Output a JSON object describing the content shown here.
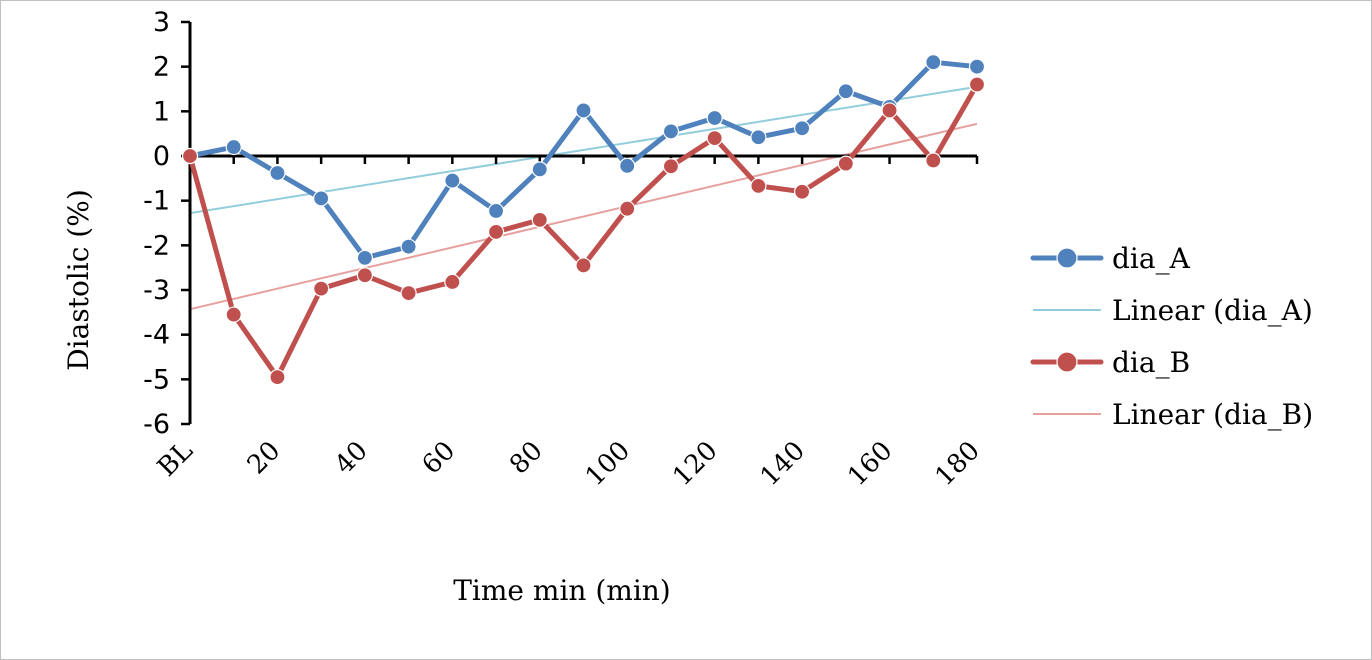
{
  "chart_data": {
    "type": "line",
    "xlabel": "Time min (min)",
    "ylabel": "Diastolic (%)",
    "ylim": [
      -6,
      3
    ],
    "y_ticks": [
      "3",
      "2",
      "1",
      "0",
      "-1",
      "-2",
      "-3",
      "-4",
      "-5",
      "-6"
    ],
    "categories": [
      "BL",
      "10",
      "20",
      "30",
      "40",
      "50",
      "60",
      "70",
      "80",
      "90",
      "100",
      "110",
      "120",
      "130",
      "140",
      "150",
      "160",
      "170",
      "180"
    ],
    "x_tick_labels_shown": [
      "BL",
      "20",
      "40",
      "60",
      "80",
      "100",
      "120",
      "140",
      "160",
      "180"
    ],
    "series": [
      {
        "name": "dia_A",
        "color": "#4f81bd",
        "values": [
          0,
          0.2,
          -0.38,
          -0.95,
          -2.28,
          -2.03,
          -0.55,
          -1.23,
          -0.3,
          1.02,
          -0.22,
          0.55,
          0.85,
          0.42,
          0.62,
          1.45,
          1.1,
          2.1,
          2.0
        ]
      },
      {
        "name": "dia_B",
        "color": "#c0504d",
        "values": [
          0,
          -3.55,
          -4.95,
          -2.97,
          -2.67,
          -3.07,
          -2.82,
          -1.7,
          -1.43,
          -2.45,
          -1.18,
          -0.23,
          0.4,
          -0.67,
          -0.8,
          -0.17,
          1.02,
          -0.1,
          1.6
        ]
      }
    ],
    "trendlines": [
      {
        "name": "Linear (dia_A)",
        "color": "#92cddc",
        "start": -1.28,
        "end": 1.55
      },
      {
        "name": "Linear (dia_B)",
        "color": "#e6a09e",
        "start": -3.43,
        "end": 0.72
      }
    ],
    "legend_position": "right",
    "grid": false
  },
  "legend": [
    {
      "label": "dia_A",
      "kind": "series",
      "color": "#4f81bd"
    },
    {
      "label": "Linear (dia_A)",
      "kind": "trend",
      "color": "#92cddc"
    },
    {
      "label": "dia_B",
      "kind": "series",
      "color": "#c0504d"
    },
    {
      "label": "Linear (dia_B)",
      "kind": "trend",
      "color": "#e6a09e"
    }
  ]
}
